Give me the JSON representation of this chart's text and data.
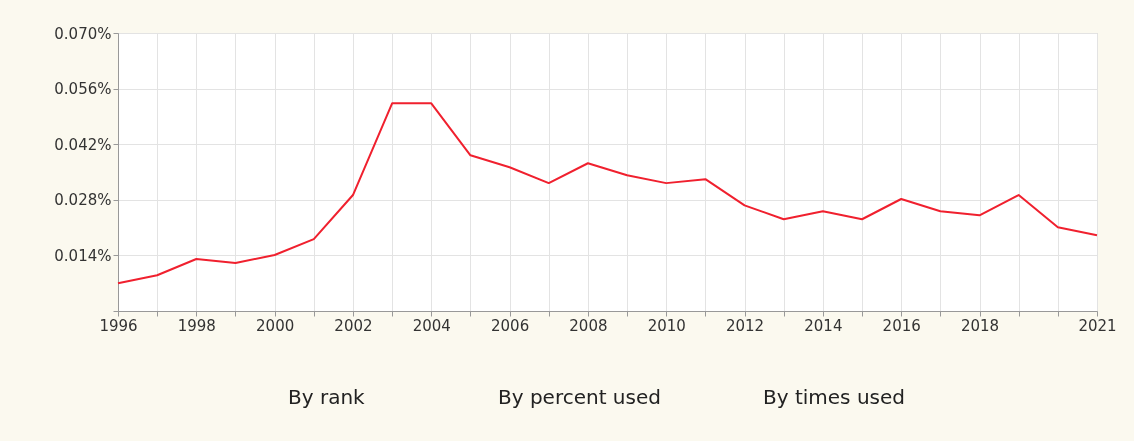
{
  "chart_data": {
    "type": "line",
    "x": [
      1996,
      1997,
      1998,
      1999,
      2000,
      2001,
      2002,
      2003,
      2004,
      2005,
      2006,
      2007,
      2008,
      2009,
      2010,
      2011,
      2012,
      2013,
      2014,
      2015,
      2016,
      2017,
      2018,
      2019,
      2020,
      2021
    ],
    "series": [
      {
        "color": "#f0202e",
        "values": [
          0.007,
          0.009,
          0.0131,
          0.0121,
          0.0141,
          0.0181,
          0.0292,
          0.0523,
          0.0523,
          0.0392,
          0.0362,
          0.0322,
          0.0372,
          0.0342,
          0.0322,
          0.0332,
          0.0266,
          0.0231,
          0.0251,
          0.0231,
          0.0282,
          0.0251,
          0.0241,
          0.0292,
          0.0211,
          0.0191
        ]
      }
    ],
    "xlim": [
      1996,
      2021
    ],
    "xticks": [
      1996,
      {
        "value": 1997,
        "label": null
      },
      1998,
      {
        "value": 1999,
        "label": null
      },
      2000,
      {
        "value": 2001,
        "label": null
      },
      2002,
      {
        "value": 2003,
        "label": null
      },
      2004,
      {
        "value": 2005,
        "label": null
      },
      2006,
      {
        "value": 2007,
        "label": null
      },
      2008,
      {
        "value": 2009,
        "label": null
      },
      2010,
      {
        "value": 2011,
        "label": null
      },
      2012,
      {
        "value": 2013,
        "label": null
      },
      2014,
      {
        "value": 2015,
        "label": null
      },
      2016,
      {
        "value": 2017,
        "label": null
      },
      2018,
      {
        "value": 2019,
        "label": null
      },
      {
        "value": 2020,
        "label": null
      },
      2021
    ],
    "ylim": [
      0,
      0.07
    ],
    "yticks": [
      {
        "value": 0,
        "label": null
      },
      {
        "value": 0.014,
        "label": "0.014%"
      },
      {
        "value": 0.028,
        "label": "0.028%"
      },
      {
        "value": 0.042,
        "label": "0.042%"
      },
      {
        "value": 0.056,
        "label": "0.056%"
      },
      {
        "value": 0.07,
        "label": "0.070%"
      }
    ],
    "grid": true,
    "marker": "none",
    "line_style": "solid",
    "annotations": [
      "By rank",
      "By percent used",
      "By times used"
    ]
  }
}
